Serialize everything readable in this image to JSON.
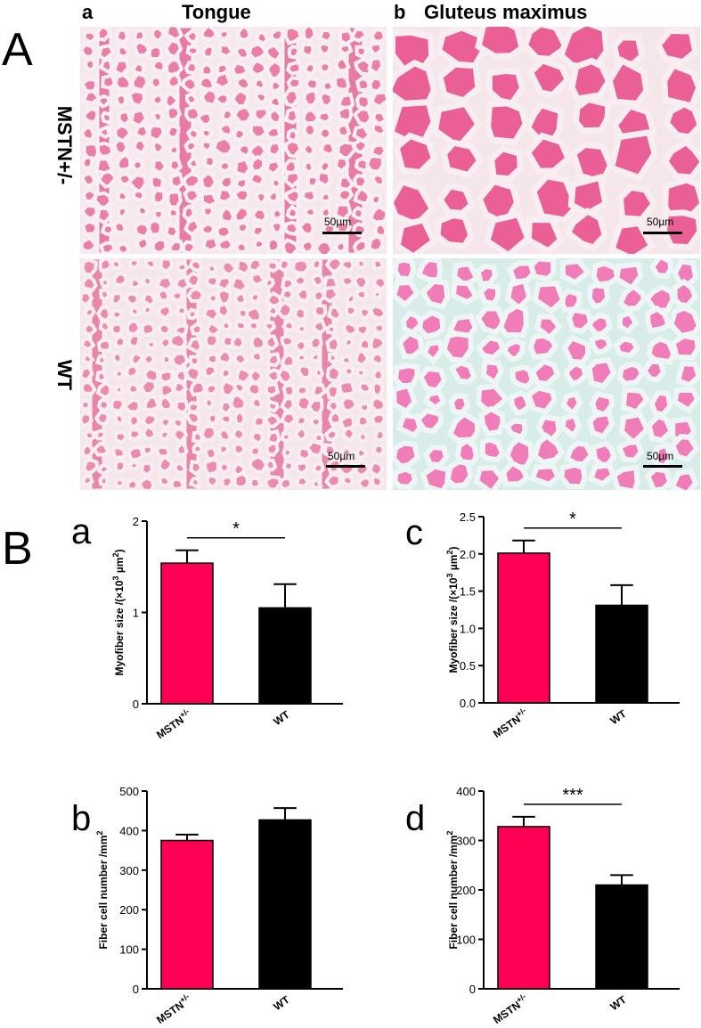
{
  "figure": {
    "panel_A_label": "A",
    "panel_B_label": "B",
    "col_a_letter": "a",
    "col_a_title": "Tongue",
    "col_b_letter": "b",
    "col_b_title": "Gluteus maximus",
    "row1_label": "MSTN+/-",
    "row2_label": "WT",
    "scale_label": "50µm",
    "colors": {
      "mstn": "#ff0055",
      "wt": "#000000",
      "tongue_bg": "#f6e8ec",
      "fiber": "#e87aa4",
      "gluteus_mstn_fiber": "#ea5f95",
      "gluteus_wt_fiber": "#f07cb8",
      "gluteus_wt_bg": "#d6ece8"
    }
  },
  "chart_data": [
    {
      "id": "a",
      "letter": "a",
      "type": "bar",
      "categories": [
        "MSTN",
        "WT"
      ],
      "category_sup": [
        "+/-",
        ""
      ],
      "values": [
        1.54,
        1.05
      ],
      "errors": [
        0.14,
        0.26
      ],
      "ylabel": "Myofiber size /(×10",
      "ylabel_sup": "3",
      "ylabel_tail": " µm",
      "ylabel_sup2": "2",
      "ylabel_end": ")",
      "ylim": [
        0,
        2
      ],
      "yticks": [
        "0",
        "1",
        "2"
      ],
      "yticks_values": [
        0,
        1,
        2
      ],
      "significance": "*"
    },
    {
      "id": "b",
      "letter": "b",
      "type": "bar",
      "categories": [
        "MSTN",
        "WT"
      ],
      "category_sup": [
        "+/-",
        ""
      ],
      "values": [
        375,
        427
      ],
      "errors": [
        15,
        30
      ],
      "ylabel": "Fiber cell number /mm",
      "ylabel_sup": "2",
      "ylim": [
        0,
        500
      ],
      "yticks": [
        "0",
        "100",
        "200",
        "300",
        "400",
        "500"
      ],
      "yticks_values": [
        0,
        100,
        200,
        300,
        400,
        500
      ],
      "significance": ""
    },
    {
      "id": "c",
      "letter": "c",
      "type": "bar",
      "categories": [
        "MSTN",
        "WT"
      ],
      "category_sup": [
        "+/-",
        ""
      ],
      "values": [
        2.01,
        1.31
      ],
      "errors": [
        0.17,
        0.27
      ],
      "ylabel": "Myofiber size /(×10",
      "ylabel_sup": "3",
      "ylabel_tail": " µm",
      "ylabel_sup2": "2",
      "ylabel_end": ")",
      "ylim": [
        0,
        2.5
      ],
      "yticks": [
        "0.0",
        "0.5",
        "1.0",
        "1.5",
        "2.0",
        "2.5"
      ],
      "yticks_values": [
        0,
        0.5,
        1.0,
        1.5,
        2.0,
        2.5
      ],
      "significance": "*"
    },
    {
      "id": "d",
      "letter": "d",
      "type": "bar",
      "categories": [
        "MSTN",
        "WT"
      ],
      "category_sup": [
        "+/-",
        ""
      ],
      "values": [
        328,
        210
      ],
      "errors": [
        20,
        20
      ],
      "ylabel": "Fiber cell number /mm",
      "ylabel_sup": "2",
      "ylim": [
        0,
        400
      ],
      "yticks": [
        "0",
        "100",
        "200",
        "300",
        "400"
      ],
      "yticks_values": [
        0,
        100,
        200,
        300,
        400
      ],
      "significance": "***"
    }
  ]
}
